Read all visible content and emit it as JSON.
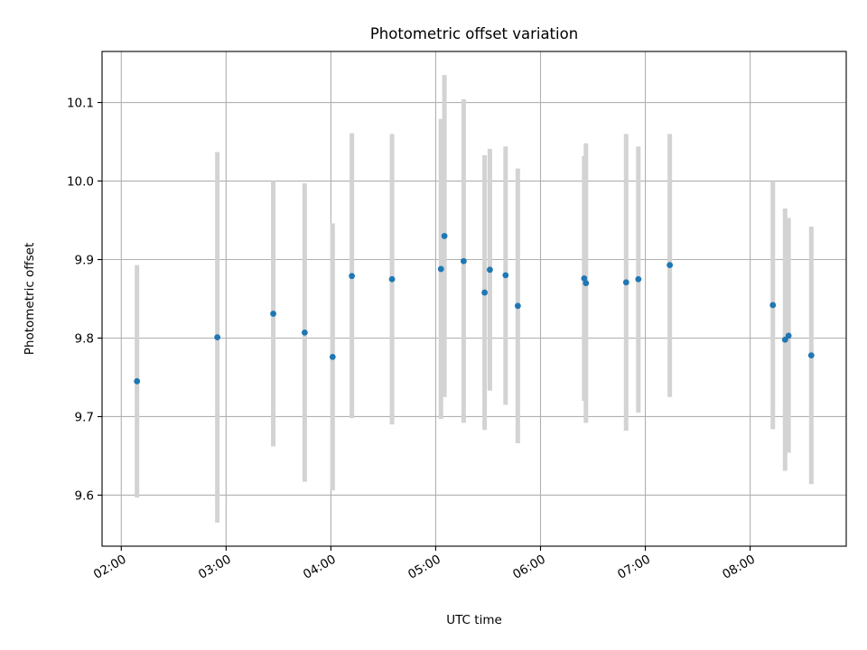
{
  "chart_data": {
    "type": "scatter",
    "title": "Photometric offset variation",
    "xlabel": "UTC time",
    "ylabel": "Photometric offset",
    "xlim": [
      "01:49",
      "08:55"
    ],
    "ylim": [
      9.535,
      10.165
    ],
    "grid": true,
    "x_ticks": [
      "02:00",
      "03:00",
      "04:00",
      "05:00",
      "06:00",
      "07:00",
      "08:00"
    ],
    "y_ticks": [
      "9.6",
      "9.7",
      "9.8",
      "9.9",
      "10.0",
      "10.1"
    ],
    "colors": {
      "marker": "#1f77b4",
      "errorbar": "#d3d3d3",
      "grid": "#b0b0b0"
    },
    "series": [
      {
        "points": [
          {
            "x": "02:09",
            "y": 9.745,
            "ylow": 9.597,
            "yhigh": 9.893
          },
          {
            "x": "02:55",
            "y": 9.801,
            "ylow": 9.565,
            "yhigh": 10.037
          },
          {
            "x": "03:27",
            "y": 9.831,
            "ylow": 9.662,
            "yhigh": 10.0
          },
          {
            "x": "03:45",
            "y": 9.807,
            "ylow": 9.617,
            "yhigh": 9.997
          },
          {
            "x": "04:01",
            "y": 9.776,
            "ylow": 9.606,
            "yhigh": 9.946
          },
          {
            "x": "04:12",
            "y": 9.879,
            "ylow": 9.698,
            "yhigh": 10.061
          },
          {
            "x": "04:35",
            "y": 9.875,
            "ylow": 9.69,
            "yhigh": 10.06
          },
          {
            "x": "05:03",
            "y": 9.888,
            "ylow": 9.697,
            "yhigh": 10.079
          },
          {
            "x": "05:05",
            "y": 9.93,
            "ylow": 9.725,
            "yhigh": 10.135
          },
          {
            "x": "05:16",
            "y": 9.898,
            "ylow": 9.692,
            "yhigh": 10.104
          },
          {
            "x": "05:28",
            "y": 9.858,
            "ylow": 9.683,
            "yhigh": 10.033
          },
          {
            "x": "05:31",
            "y": 9.887,
            "ylow": 9.733,
            "yhigh": 10.041
          },
          {
            "x": "05:40",
            "y": 9.88,
            "ylow": 9.715,
            "yhigh": 10.044
          },
          {
            "x": "05:47",
            "y": 9.841,
            "ylow": 9.666,
            "yhigh": 10.016
          },
          {
            "x": "06:25",
            "y": 9.876,
            "ylow": 9.72,
            "yhigh": 10.032
          },
          {
            "x": "06:26",
            "y": 9.87,
            "ylow": 9.692,
            "yhigh": 10.048
          },
          {
            "x": "06:49",
            "y": 9.871,
            "ylow": 9.682,
            "yhigh": 10.06
          },
          {
            "x": "06:56",
            "y": 9.875,
            "ylow": 9.705,
            "yhigh": 10.044
          },
          {
            "x": "07:14",
            "y": 9.893,
            "ylow": 9.725,
            "yhigh": 10.06
          },
          {
            "x": "08:13",
            "y": 9.842,
            "ylow": 9.684,
            "yhigh": 10.0
          },
          {
            "x": "08:20",
            "y": 9.798,
            "ylow": 9.631,
            "yhigh": 9.965
          },
          {
            "x": "08:22",
            "y": 9.803,
            "ylow": 9.654,
            "yhigh": 9.953
          },
          {
            "x": "08:35",
            "y": 9.778,
            "ylow": 9.614,
            "yhigh": 9.942
          }
        ]
      }
    ]
  }
}
